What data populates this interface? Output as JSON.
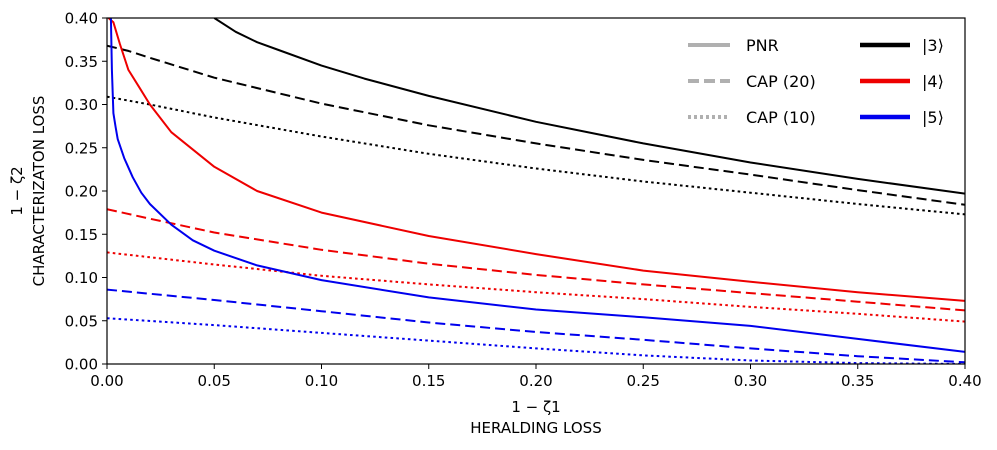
{
  "chart_data": {
    "type": "line",
    "title": "",
    "xlabel_math": "1 − ζ1",
    "xlabel": "HERALDING LOSS",
    "ylabel_math": "1 − ζ2",
    "ylabel": "CHARACTERIZATON LOSS",
    "xlim": [
      0.0,
      0.4
    ],
    "ylim": [
      0.0,
      0.4
    ],
    "xticks": [
      "0.00",
      "0.05",
      "0.10",
      "0.15",
      "0.20",
      "0.25",
      "0.30",
      "0.35",
      "0.40"
    ],
    "yticks": [
      "0.00",
      "0.05",
      "0.10",
      "0.15",
      "0.20",
      "0.25",
      "0.30",
      "0.35",
      "0.40"
    ],
    "grid": false,
    "legend_position": "top-right",
    "legend": {
      "styles": [
        {
          "label": "PNR",
          "linestyle": "solid"
        },
        {
          "label": "CAP (20)",
          "linestyle": "dashed"
        },
        {
          "label": "CAP (10)",
          "linestyle": "dotted"
        }
      ],
      "states": [
        {
          "label": "|3⟩",
          "color": "#000000"
        },
        {
          "label": "|4⟩",
          "color": "#ee0000"
        },
        {
          "label": "|5⟩",
          "color": "#0000ee"
        }
      ]
    },
    "series": [
      {
        "name": "|3⟩ PNR",
        "color": "#000000",
        "linestyle": "solid",
        "x": [
          0.05,
          0.06,
          0.07,
          0.08,
          0.1,
          0.12,
          0.15,
          0.2,
          0.25,
          0.3,
          0.35,
          0.4
        ],
        "y": [
          0.4,
          0.384,
          0.372,
          0.363,
          0.345,
          0.33,
          0.31,
          0.28,
          0.255,
          0.233,
          0.214,
          0.197
        ]
      },
      {
        "name": "|3⟩ CAP (20)",
        "color": "#000000",
        "linestyle": "dashed",
        "x": [
          0.0,
          0.01,
          0.02,
          0.05,
          0.1,
          0.15,
          0.2,
          0.25,
          0.3,
          0.35,
          0.4
        ],
        "y": [
          0.368,
          0.362,
          0.354,
          0.331,
          0.301,
          0.276,
          0.255,
          0.236,
          0.219,
          0.201,
          0.184
        ]
      },
      {
        "name": "|3⟩ CAP (10)",
        "color": "#000000",
        "linestyle": "dotted",
        "x": [
          0.0,
          0.02,
          0.05,
          0.1,
          0.15,
          0.2,
          0.25,
          0.3,
          0.35,
          0.4
        ],
        "y": [
          0.309,
          0.3,
          0.285,
          0.263,
          0.243,
          0.226,
          0.211,
          0.198,
          0.185,
          0.173
        ]
      },
      {
        "name": "|4⟩ PNR",
        "color": "#ee0000",
        "linestyle": "solid",
        "x": [
          0.0007,
          0.003,
          0.006,
          0.01,
          0.015,
          0.02,
          0.03,
          0.05,
          0.07,
          0.1,
          0.15,
          0.2,
          0.25,
          0.3,
          0.35,
          0.4
        ],
        "y": [
          0.4,
          0.395,
          0.37,
          0.34,
          0.32,
          0.3,
          0.268,
          0.228,
          0.2,
          0.175,
          0.148,
          0.127,
          0.108,
          0.095,
          0.083,
          0.073
        ]
      },
      {
        "name": "|4⟩ CAP (20)",
        "color": "#ee0000",
        "linestyle": "dashed",
        "x": [
          0.0,
          0.02,
          0.05,
          0.1,
          0.15,
          0.2,
          0.25,
          0.3,
          0.35,
          0.4
        ],
        "y": [
          0.179,
          0.168,
          0.152,
          0.132,
          0.116,
          0.103,
          0.092,
          0.082,
          0.072,
          0.062
        ]
      },
      {
        "name": "|4⟩ CAP (10)",
        "color": "#ee0000",
        "linestyle": "dotted",
        "x": [
          0.0,
          0.05,
          0.1,
          0.15,
          0.2,
          0.25,
          0.3,
          0.35,
          0.4
        ],
        "y": [
          0.129,
          0.115,
          0.102,
          0.092,
          0.083,
          0.075,
          0.066,
          0.058,
          0.049
        ]
      },
      {
        "name": "|5⟩ PNR",
        "color": "#0000ee",
        "linestyle": "solid",
        "x": [
          0.0018,
          0.0023,
          0.003,
          0.004,
          0.005,
          0.008,
          0.012,
          0.016,
          0.02,
          0.03,
          0.04,
          0.05,
          0.07,
          0.1,
          0.15,
          0.2,
          0.25,
          0.3,
          0.35,
          0.4
        ],
        "y": [
          0.4,
          0.34,
          0.29,
          0.274,
          0.26,
          0.238,
          0.216,
          0.198,
          0.185,
          0.161,
          0.143,
          0.131,
          0.114,
          0.097,
          0.077,
          0.063,
          0.054,
          0.044,
          0.029,
          0.014
        ]
      },
      {
        "name": "|5⟩ CAP (20)",
        "color": "#0000ee",
        "linestyle": "dashed",
        "x": [
          0.0,
          0.05,
          0.1,
          0.15,
          0.2,
          0.25,
          0.3,
          0.35,
          0.4
        ],
        "y": [
          0.086,
          0.074,
          0.061,
          0.048,
          0.037,
          0.028,
          0.018,
          0.009,
          0.002
        ]
      },
      {
        "name": "|5⟩ CAP (10)",
        "color": "#0000ee",
        "linestyle": "dotted",
        "x": [
          0.0,
          0.05,
          0.1,
          0.15,
          0.2,
          0.25,
          0.3,
          0.35,
          0.4
        ],
        "y": [
          0.053,
          0.045,
          0.036,
          0.027,
          0.018,
          0.01,
          0.004,
          0.001,
          0.0
        ]
      }
    ]
  }
}
